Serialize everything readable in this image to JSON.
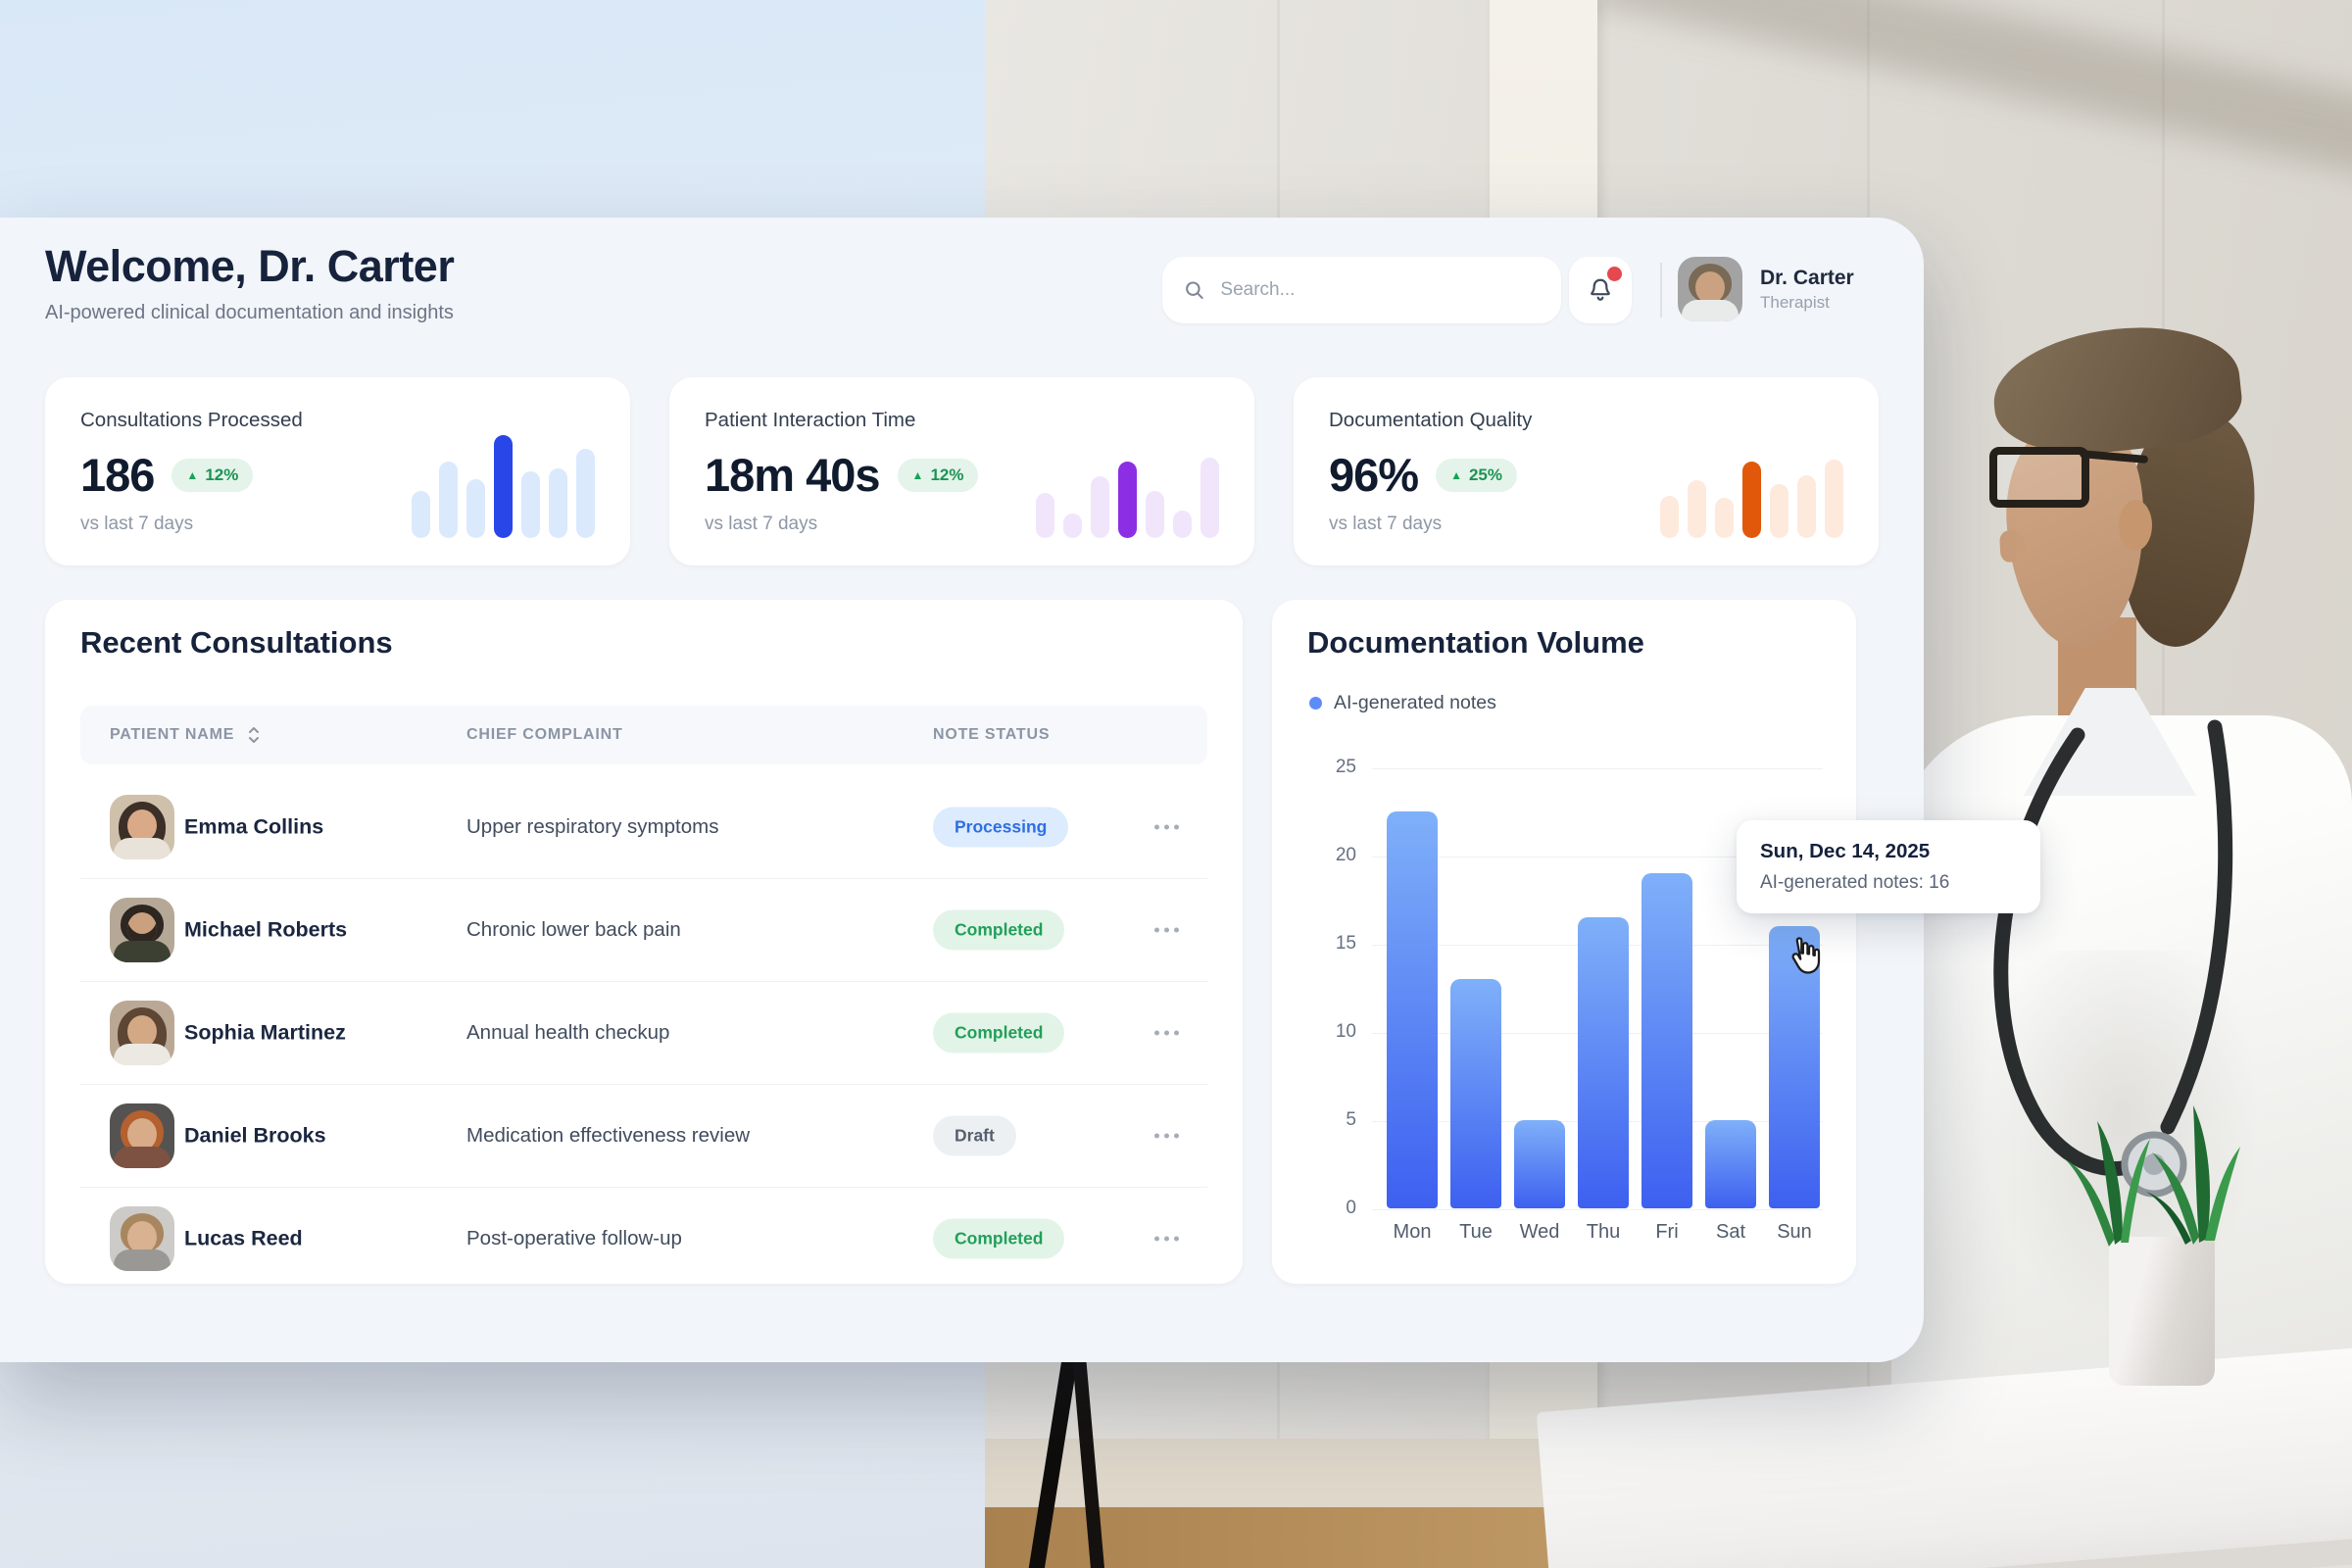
{
  "header": {
    "title": "Welcome, Dr. Carter",
    "subtitle": "AI-powered clinical documentation and insights",
    "search_placeholder": "Search...",
    "user": {
      "name": "Dr. Carter",
      "role": "Therapist"
    },
    "notifications": {
      "has_unread": true
    }
  },
  "stats": [
    {
      "label": "Consultations Processed",
      "value": "186",
      "delta": "12%",
      "trend": "up",
      "caption": "vs last 7 days",
      "accent": "#2946e9",
      "light": "#dbe9fc",
      "spark": [
        42,
        68,
        53,
        92,
        60,
        62,
        80
      ],
      "highlight_index": 3
    },
    {
      "label": "Patient Interaction Time",
      "value": "18m 40s",
      "delta": "12%",
      "trend": "up",
      "caption": "vs last 7 days",
      "accent": "#8c2fe4",
      "light": "#f1e5fc",
      "spark": [
        40,
        22,
        55,
        68,
        42,
        25,
        72
      ],
      "highlight_index": 3
    },
    {
      "label": "Documentation Quality",
      "value": "96%",
      "delta": "25%",
      "trend": "up",
      "caption": "vs last 7 days",
      "accent": "#e2580a",
      "light": "#fdeadd",
      "spark": [
        38,
        52,
        36,
        68,
        48,
        56,
        70
      ],
      "highlight_index": 3
    }
  ],
  "consultations": {
    "title": "Recent Consultations",
    "columns": [
      "Patient name",
      "Chief complaint",
      "Note status"
    ],
    "rows": [
      {
        "name": "Emma Collins",
        "complaint": "Upper respiratory symptoms",
        "status": "Processing",
        "status_type": "processing",
        "avatar": "emma"
      },
      {
        "name": "Michael Roberts",
        "complaint": "Chronic lower back pain",
        "status": "Completed",
        "status_type": "completed",
        "avatar": "michael"
      },
      {
        "name": "Sophia Martinez",
        "complaint": "Annual health checkup",
        "status": "Completed",
        "status_type": "completed",
        "avatar": "sophia"
      },
      {
        "name": "Daniel Brooks",
        "complaint": "Medication effectiveness review",
        "status": "Draft",
        "status_type": "draft",
        "avatar": "daniel"
      },
      {
        "name": "Lucas Reed",
        "complaint": "Post-operative follow-up",
        "status": "Completed",
        "status_type": "completed",
        "avatar": "lucas"
      }
    ]
  },
  "documentation_volume": {
    "title": "Documentation Volume",
    "legend_label": "AI-generated notes",
    "tooltip": {
      "title": "Sun, Dec 14, 2025",
      "text": "AI-generated notes: 16"
    }
  },
  "chart_data": {
    "type": "bar",
    "title": "Documentation Volume",
    "categories": [
      "Mon",
      "Tue",
      "Wed",
      "Thu",
      "Fri",
      "Sat",
      "Sun"
    ],
    "series": [
      {
        "name": "AI-generated notes",
        "values": [
          22.5,
          13,
          5,
          16.5,
          19,
          5,
          16
        ]
      }
    ],
    "ylim": [
      0,
      25
    ],
    "yticks": [
      0,
      5,
      10,
      15,
      20,
      25
    ],
    "grid": "horizontal",
    "legend_position": "top-left",
    "highlighted": {
      "category": "Sun",
      "value": 16,
      "date": "Sun, Dec 14, 2025"
    }
  },
  "colors": {
    "panel_bg": "#f2f5f9",
    "card_bg": "#ffffff",
    "accent_blue": "#2946e9",
    "accent_purple": "#8c2fe4",
    "accent_orange": "#e2580a",
    "positive_green": "#18a257",
    "notification_red": "#e5484d",
    "bar_gradient_top": "#7fb0f9",
    "bar_gradient_bottom": "#3d60f0",
    "status_processing": "#2e6fe3",
    "status_completed": "#229f5a",
    "status_draft": "#555f6d"
  }
}
